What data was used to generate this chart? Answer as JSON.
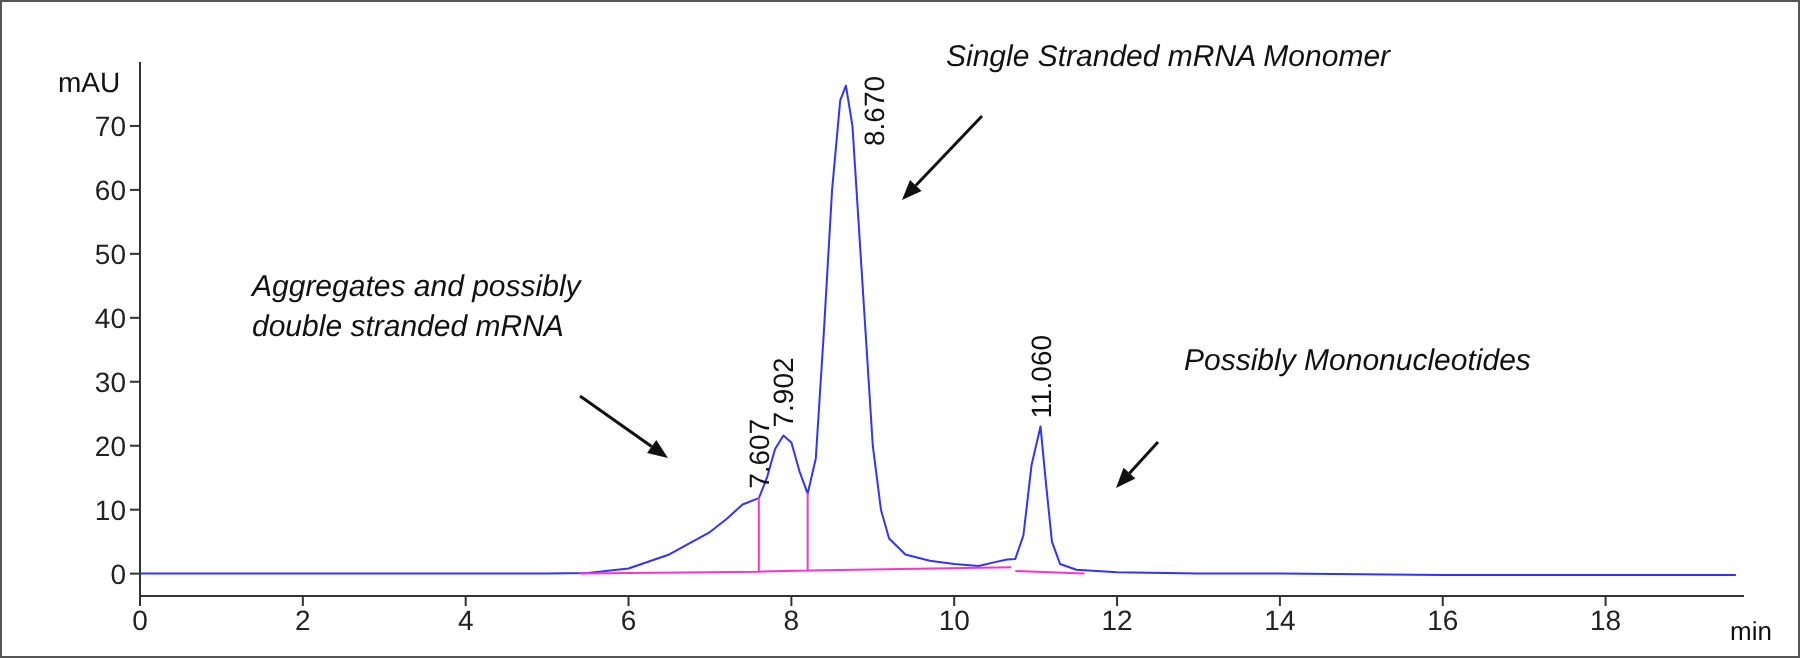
{
  "chart_data": {
    "type": "line",
    "ylabel": "mAU",
    "xlabel": "min",
    "xlim": [
      0,
      19.7
    ],
    "xticks": [
      0,
      2,
      4,
      6,
      8,
      10,
      12,
      14,
      16,
      18
    ],
    "ylim": [
      -3.5,
      80
    ],
    "yticks": [
      0,
      10,
      20,
      30,
      40,
      50,
      60,
      70
    ],
    "marker": "none",
    "line_style": "solid",
    "series": [
      {
        "color": "#3333ff",
        "x": [
          0,
          2,
          4,
          5,
          5.5,
          6,
          6.5,
          7,
          7.2,
          7.4,
          7.6,
          7.607,
          7.7,
          7.8,
          7.902,
          8.0,
          8.1,
          8.2,
          8.3,
          8.4,
          8.5,
          8.6,
          8.67,
          8.75,
          8.8,
          8.9,
          9.0,
          9.1,
          9.2,
          9.4,
          9.7,
          10,
          10.3,
          10.5,
          10.65,
          10.75,
          10.85,
          10.95,
          11.06,
          11.12,
          11.2,
          11.3,
          11.5,
          12,
          13,
          14,
          16,
          18,
          19.6
        ],
        "values": [
          0,
          0,
          0,
          0,
          0.1,
          0.8,
          3,
          6.5,
          8.5,
          10.8,
          11.8,
          12,
          15,
          19.5,
          21.6,
          20.5,
          16,
          12.5,
          18,
          38,
          60,
          74,
          76.3,
          70,
          60,
          40,
          20,
          10,
          5.5,
          3,
          2,
          1.5,
          1.2,
          1.8,
          2.2,
          2.3,
          6,
          17,
          23,
          15,
          5,
          1.5,
          0.6,
          0.2,
          0,
          0,
          -0.2,
          -0.2,
          -0.2
        ]
      },
      {
        "color": "#ff33cc",
        "x": [
          5.4,
          7.6,
          7.6,
          7.6,
          8.2,
          8.2,
          8.2,
          10.7
        ],
        "values": [
          0,
          0.3,
          11.8,
          0.3,
          0.5,
          12.5,
          0.5,
          1.0
        ]
      },
      {
        "color": "#ff33cc",
        "x": [
          10.75,
          11.6
        ],
        "values": [
          0.4,
          0
        ]
      }
    ],
    "annotations": [
      "Aggregates and possibly\ndouble stranded mRNA",
      "Single Stranded mRNA Monomer",
      "Possibly Mononucleotides",
      {
        "text": "7.607",
        "x": 7.607,
        "y": 12
      },
      {
        "text": "7.902",
        "x": 7.902,
        "y": 21.6
      },
      {
        "text": "8.670",
        "x": 8.67,
        "y": 76.3
      },
      {
        "text": "11.060",
        "x": 11.06,
        "y": 23
      }
    ]
  }
}
